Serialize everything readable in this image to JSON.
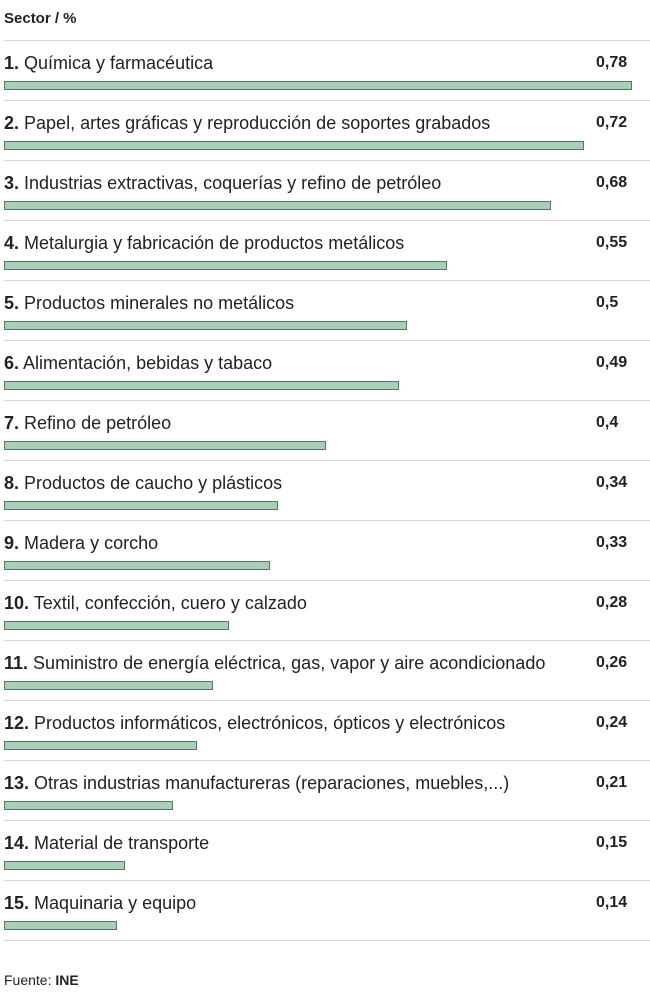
{
  "header": "Sector / %",
  "source": {
    "label": "Fuente:",
    "name": "INE"
  },
  "chart_data": {
    "type": "bar",
    "orientation": "horizontal",
    "title": "Sector / %",
    "xlim": [
      0,
      0.78
    ],
    "bar_color": "#a9cfb7",
    "bar_border_color": "#4f7a61",
    "categories": [
      "Química y farmacéutica",
      "Papel, artes gráficas y reproducción de soportes grabados",
      "Industrias extractivas, coquerías y refino de petróleo",
      "Metalurgia y fabricación de productos metálicos",
      "Productos minerales no metálicos",
      "Alimentación, bebidas y tabaco",
      "Refino de petróleo",
      "Productos de caucho y plásticos",
      "Madera y corcho",
      "Textil, confección, cuero y calzado",
      "Suministro de energía eléctrica, gas, vapor y aire acondicionado",
      "Productos informáticos, electrónicos, ópticos y electrónicos",
      "Otras industrias manufactureras (reparaciones, muebles,...)",
      "Material de transporte",
      "Maquinaria y equipo"
    ],
    "ranks": [
      "1.",
      "2.",
      "3.",
      "4.",
      "5.",
      "6.",
      "7.",
      "8.",
      "9.",
      "10.",
      "11.",
      "12.",
      "13.",
      "14.",
      "15."
    ],
    "values": [
      0.78,
      0.72,
      0.68,
      0.55,
      0.5,
      0.49,
      0.4,
      0.34,
      0.33,
      0.28,
      0.26,
      0.24,
      0.21,
      0.15,
      0.14
    ],
    "value_labels": [
      "0,78",
      "0,72",
      "0,68",
      "0,55",
      "0,5",
      "0,49",
      "0,4",
      "0,34",
      "0,33",
      "0,28",
      "0,26",
      "0,24",
      "0,21",
      "0,15",
      "0,14"
    ]
  }
}
